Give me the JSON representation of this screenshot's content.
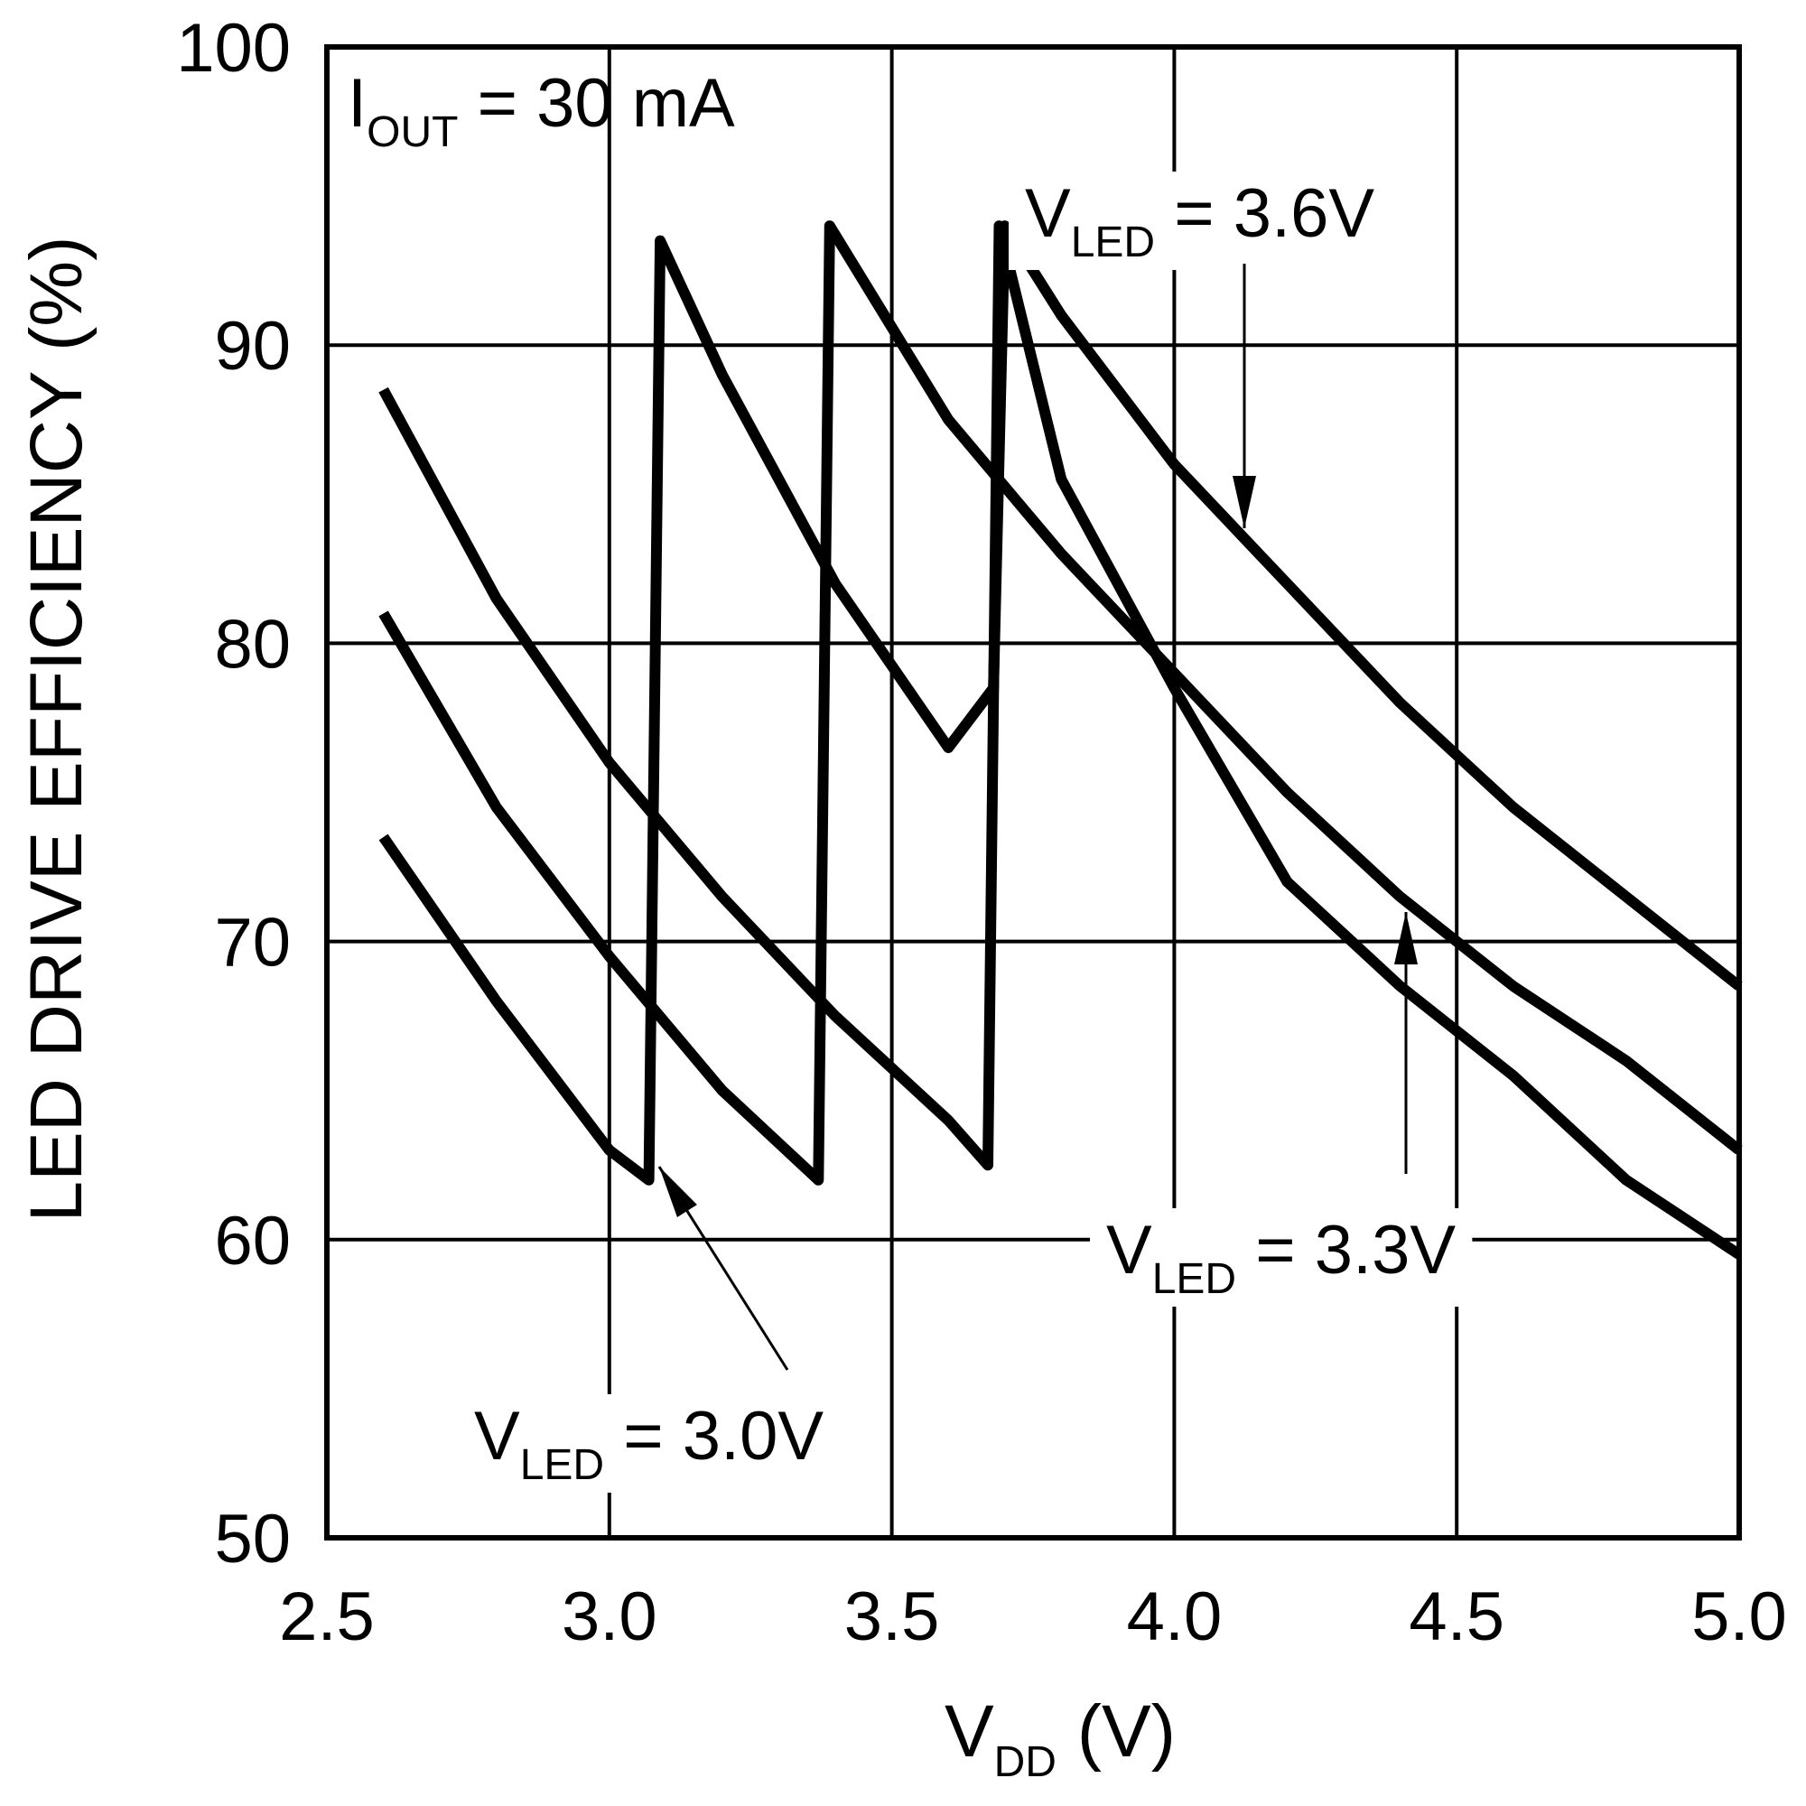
{
  "chart_data": {
    "type": "line",
    "title": "",
    "xlabel": {
      "main": "V",
      "sub": "DD",
      "rest": " (V)"
    },
    "ylabel": "LED DRIVE EFFICIENCY (%)",
    "xlim": [
      2.5,
      5.0
    ],
    "ylim": [
      50,
      100
    ],
    "xticks": [
      "2.5",
      "3.0",
      "3.5",
      "4.0",
      "4.5",
      "5.0"
    ],
    "yticks": [
      "50",
      "60",
      "70",
      "80",
      "90",
      "100"
    ],
    "grid": true,
    "condition": {
      "main": "I",
      "sub": "OUT",
      "rest": " = 30 mA"
    },
    "series": [
      {
        "name": "V_LED = 3.0V",
        "label": {
          "main": "V",
          "sub": "LED",
          "rest": " = 3.0V"
        },
        "x": [
          2.6,
          2.8,
          3.0,
          3.07,
          3.09,
          3.2,
          3.4,
          3.6,
          3.68,
          3.7,
          3.8,
          4.0,
          4.2,
          4.4,
          4.6,
          4.8,
          5.0
        ],
        "y": [
          73.5,
          68.0,
          63.0,
          62.0,
          93.5,
          89.0,
          82.0,
          76.5,
          78.5,
          94.0,
          91.0,
          86.0,
          82.0,
          78.0,
          74.5,
          71.5,
          68.5
        ]
      },
      {
        "name": "V_LED = 3.3V",
        "label": {
          "main": "V",
          "sub": "LED",
          "rest": " = 3.3V"
        },
        "x": [
          2.6,
          2.8,
          3.0,
          3.2,
          3.37,
          3.39,
          3.6,
          3.8,
          4.0,
          4.2,
          4.4,
          4.6,
          4.8,
          5.0
        ],
        "y": [
          81.0,
          74.5,
          69.5,
          65.0,
          62.0,
          94.0,
          87.5,
          83.0,
          79.0,
          75.0,
          71.5,
          68.5,
          66.0,
          63.0
        ]
      },
      {
        "name": "V_LED = 3.6V",
        "label": {
          "main": "V",
          "sub": "LED",
          "rest": " = 3.6V"
        },
        "x": [
          2.6,
          2.8,
          3.0,
          3.2,
          3.4,
          3.6,
          3.67,
          3.69,
          3.8,
          4.0,
          4.2,
          4.4,
          4.6,
          4.8,
          5.0
        ],
        "y": [
          88.5,
          81.5,
          76.0,
          71.5,
          67.5,
          64.0,
          62.5,
          94.0,
          85.5,
          78.5,
          72.0,
          68.5,
          65.5,
          62.0,
          59.5
        ]
      }
    ]
  }
}
